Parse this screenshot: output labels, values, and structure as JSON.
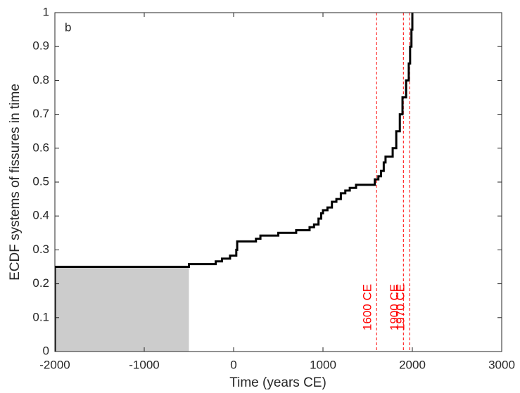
{
  "chart_data": {
    "type": "line",
    "panel_label": "b",
    "xlabel": "Time (years CE)",
    "ylabel": "ECDF systems of fissures in time",
    "xlim": [
      -2000,
      3000
    ],
    "ylim": [
      0,
      1
    ],
    "xticks": [
      -2000,
      -1000,
      0,
      1000,
      2000,
      3000
    ],
    "yticks": [
      0,
      0.1,
      0.2,
      0.3,
      0.4,
      0.5,
      0.6,
      0.7,
      0.8,
      0.9,
      1
    ],
    "shaded_region": {
      "x": [
        -2000,
        -500
      ],
      "y": [
        0,
        0.25
      ],
      "color": "#cccccc"
    },
    "vlines": [
      {
        "x": 1600,
        "label": "1600 CE"
      },
      {
        "x": 1900,
        "label": "1900 CE"
      },
      {
        "x": 1970,
        "label": "1970 CE"
      }
    ],
    "vline_color": "#ff0000",
    "series": [
      {
        "color": "#000000",
        "x": [
          -2000,
          -2000,
          -500,
          -500,
          -200,
          -200,
          -130,
          -130,
          -40,
          -40,
          30,
          30,
          40,
          40,
          250,
          250,
          300,
          300,
          500,
          500,
          700,
          700,
          850,
          850,
          900,
          900,
          950,
          950,
          980,
          980,
          1000,
          1000,
          1050,
          1050,
          1100,
          1100,
          1150,
          1150,
          1200,
          1200,
          1250,
          1250,
          1300,
          1300,
          1370,
          1370,
          1580,
          1580,
          1620,
          1620,
          1650,
          1650,
          1680,
          1680,
          1700,
          1700,
          1780,
          1780,
          1820,
          1820,
          1860,
          1860,
          1890,
          1890,
          1930,
          1930,
          1960,
          1960,
          1975,
          1975,
          1990,
          1990,
          2000,
          2000,
          2010
        ],
        "values": [
          0,
          0.25,
          0.25,
          0.258,
          0.258,
          0.266,
          0.266,
          0.274,
          0.274,
          0.283,
          0.283,
          0.3,
          0.3,
          0.325,
          0.325,
          0.333,
          0.333,
          0.342,
          0.342,
          0.35,
          0.35,
          0.358,
          0.358,
          0.367,
          0.367,
          0.375,
          0.375,
          0.392,
          0.392,
          0.408,
          0.408,
          0.417,
          0.417,
          0.425,
          0.425,
          0.442,
          0.442,
          0.45,
          0.45,
          0.467,
          0.467,
          0.475,
          0.475,
          0.483,
          0.483,
          0.492,
          0.492,
          0.508,
          0.508,
          0.517,
          0.517,
          0.533,
          0.533,
          0.558,
          0.558,
          0.575,
          0.575,
          0.6,
          0.6,
          0.65,
          0.65,
          0.7,
          0.7,
          0.75,
          0.75,
          0.8,
          0.8,
          0.85,
          0.85,
          0.9,
          0.9,
          0.95,
          0.95,
          1.0,
          1.0
        ]
      }
    ]
  }
}
